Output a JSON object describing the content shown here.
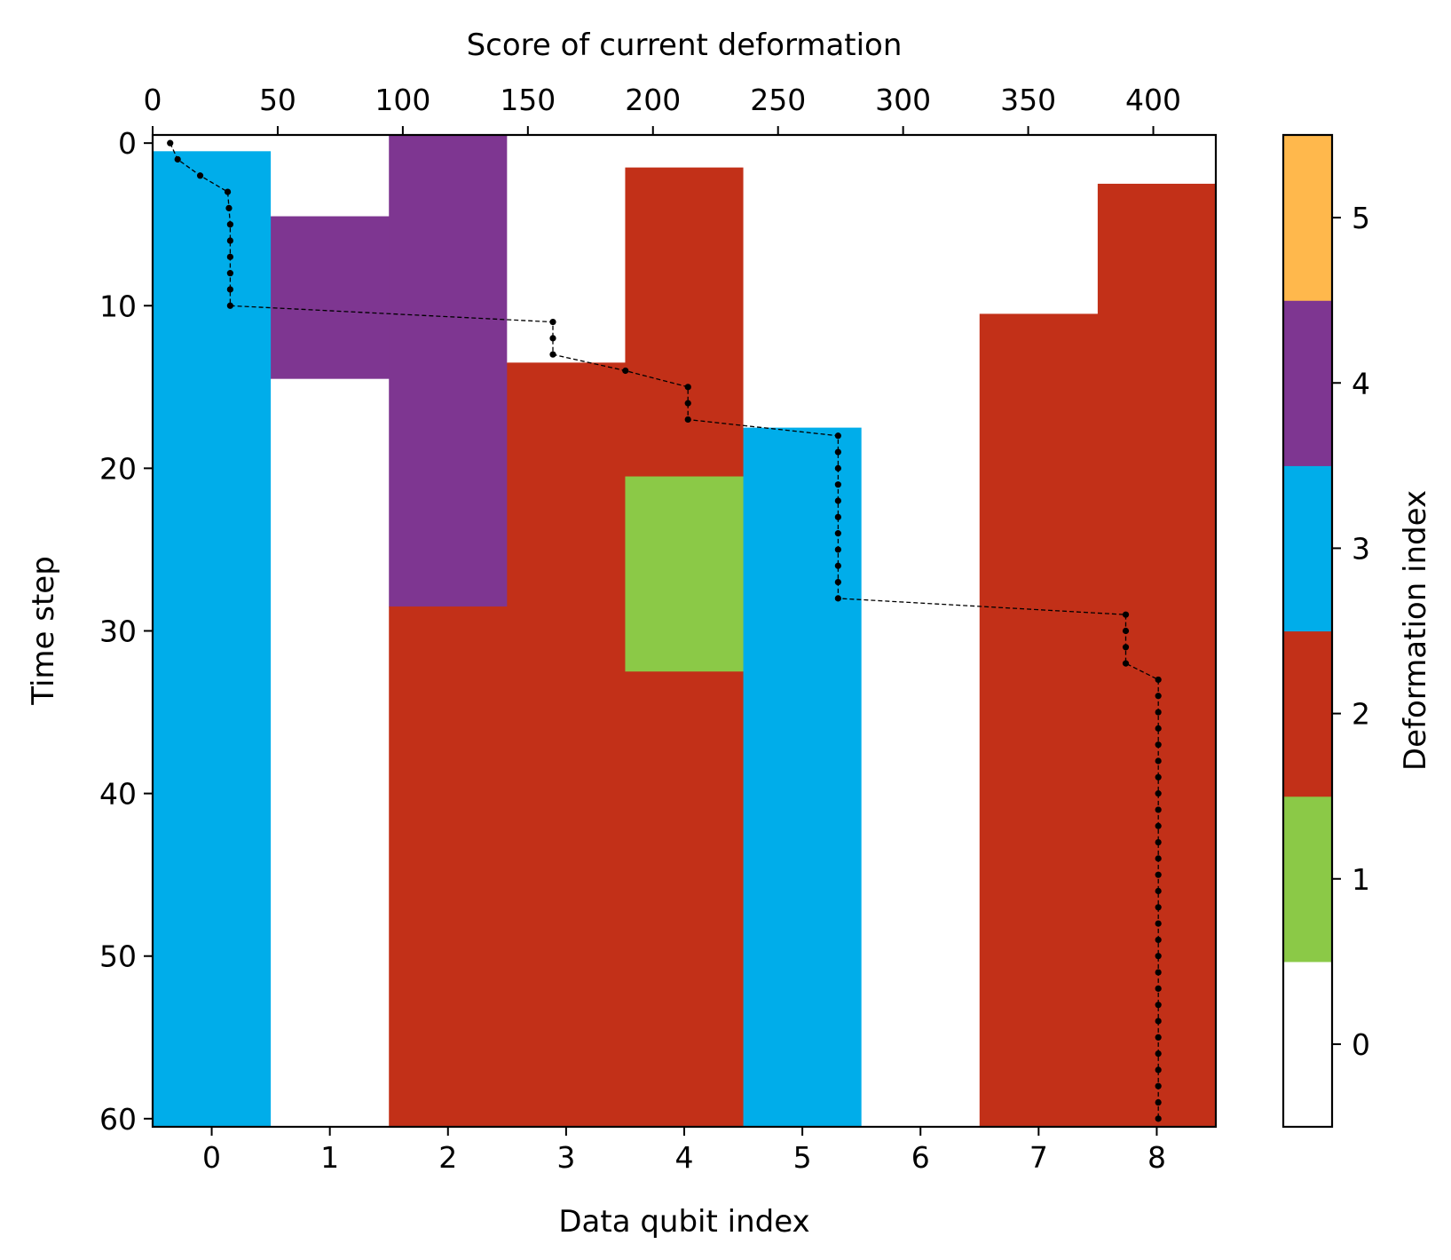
{
  "chart_data": {
    "type": "heatmap",
    "xlabel": "Data qubit index",
    "ylabel": "Time step",
    "top_xlabel": "Score of current deformation",
    "colorbar_label": "Deformation index",
    "x_ticks": [
      0,
      1,
      2,
      3,
      4,
      5,
      6,
      7,
      8
    ],
    "y_ticks": [
      0,
      10,
      20,
      30,
      40,
      50,
      60
    ],
    "top_ticks": [
      0,
      50,
      100,
      150,
      200,
      250,
      300,
      350,
      400
    ],
    "colorbar_ticks": [
      0,
      1,
      2,
      3,
      4,
      5
    ],
    "xlim": [
      -0.5,
      8.5
    ],
    "ylim": [
      -0.5,
      60.5
    ],
    "top_xlim": [
      0,
      425
    ],
    "colormap": [
      "#ffffff",
      "#8bc947",
      "#c23018",
      "#00adea",
      "#7e3691",
      "#ffb84c"
    ],
    "blocks": [
      {
        "qubit": 0,
        "start": 0,
        "end": 0,
        "value": 0
      },
      {
        "qubit": 0,
        "start": 1,
        "end": 60,
        "value": 3
      },
      {
        "qubit": 1,
        "start": 0,
        "end": 4,
        "value": 0
      },
      {
        "qubit": 1,
        "start": 5,
        "end": 14,
        "value": 4
      },
      {
        "qubit": 1,
        "start": 15,
        "end": 60,
        "value": 0
      },
      {
        "qubit": 2,
        "start": 0,
        "end": 28,
        "value": 4
      },
      {
        "qubit": 2,
        "start": 29,
        "end": 60,
        "value": 2
      },
      {
        "qubit": 3,
        "start": 0,
        "end": 13,
        "value": 0
      },
      {
        "qubit": 3,
        "start": 14,
        "end": 60,
        "value": 2
      },
      {
        "qubit": 4,
        "start": 0,
        "end": 1,
        "value": 0
      },
      {
        "qubit": 4,
        "start": 2,
        "end": 20,
        "value": 2
      },
      {
        "qubit": 4,
        "start": 21,
        "end": 32,
        "value": 1
      },
      {
        "qubit": 4,
        "start": 33,
        "end": 60,
        "value": 2
      },
      {
        "qubit": 5,
        "start": 0,
        "end": 17,
        "value": 0
      },
      {
        "qubit": 5,
        "start": 18,
        "end": 60,
        "value": 3
      },
      {
        "qubit": 6,
        "start": 0,
        "end": 60,
        "value": 0
      },
      {
        "qubit": 7,
        "start": 0,
        "end": 10,
        "value": 0
      },
      {
        "qubit": 7,
        "start": 11,
        "end": 60,
        "value": 2
      },
      {
        "qubit": 8,
        "start": 0,
        "end": 2,
        "value": 0
      },
      {
        "qubit": 8,
        "start": 3,
        "end": 60,
        "value": 2
      }
    ],
    "score_series": {
      "time": [
        0,
        1,
        2,
        3,
        4,
        5,
        6,
        7,
        8,
        9,
        10,
        11,
        12,
        13,
        14,
        15,
        16,
        17,
        18,
        19,
        20,
        21,
        22,
        23,
        24,
        25,
        26,
        27,
        28,
        29,
        30,
        31,
        32,
        33,
        34,
        35,
        36,
        37,
        38,
        39,
        40,
        41,
        42,
        43,
        44,
        45,
        46,
        47,
        48,
        49,
        50,
        51,
        52,
        53,
        54,
        55,
        56,
        57,
        58,
        59,
        60
      ],
      "score": [
        7,
        10,
        19,
        30,
        30.5,
        31,
        31,
        31,
        31,
        31,
        31,
        160,
        160,
        160,
        189,
        214,
        214,
        214,
        274,
        274,
        274,
        274,
        274,
        274,
        274,
        274,
        274,
        274,
        274,
        389,
        389,
        389,
        389,
        402,
        402,
        402,
        402,
        402,
        402,
        402,
        402,
        402,
        402,
        402,
        402,
        402,
        402,
        402,
        402,
        402,
        402,
        402,
        402,
        402,
        402,
        402,
        402,
        402,
        402,
        402,
        402
      ]
    }
  }
}
